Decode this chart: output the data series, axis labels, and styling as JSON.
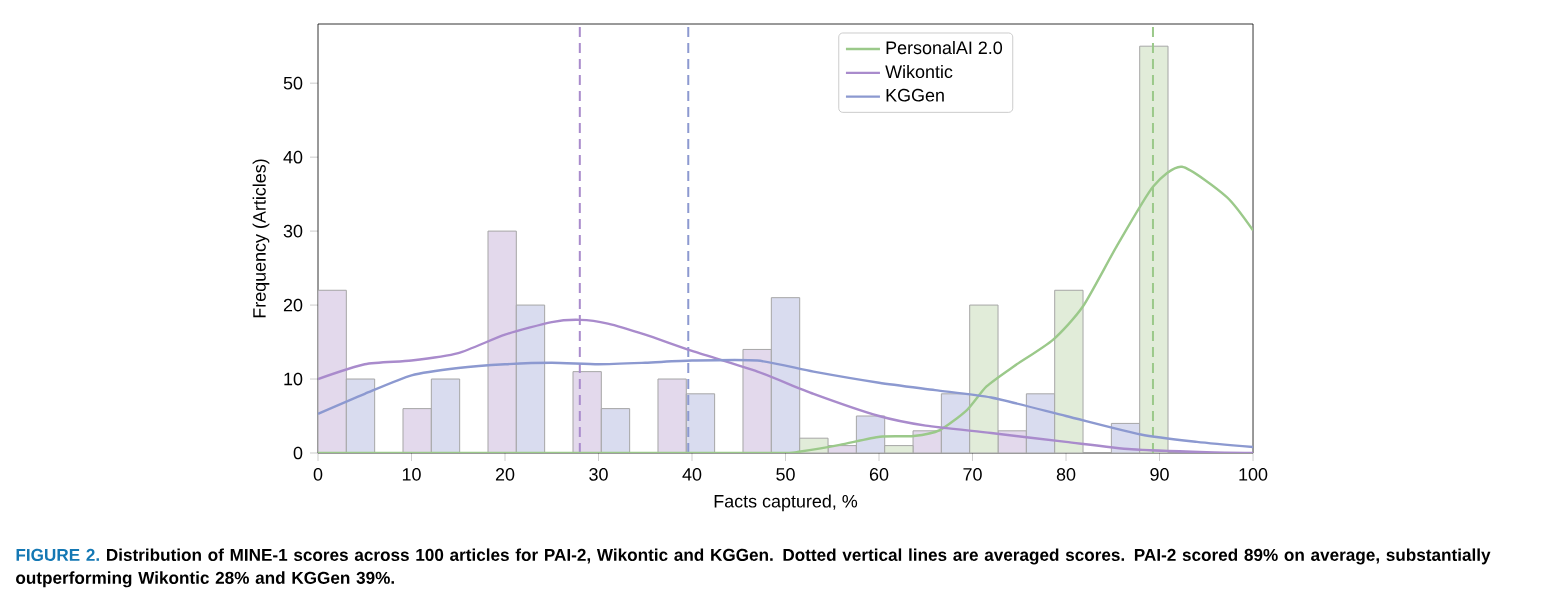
{
  "chart_data": {
    "type": "histogram",
    "xlabel": "Facts captured, %",
    "ylabel": "Frequency (Articles)",
    "xlim": [
      0,
      100
    ],
    "ylim": [
      0,
      58
    ],
    "xticks": [
      0,
      10,
      20,
      30,
      40,
      50,
      60,
      70,
      80,
      90,
      100
    ],
    "yticks": [
      0,
      10,
      20,
      30,
      40,
      50
    ],
    "bins": [
      0,
      9.09,
      18.18,
      27.27,
      36.36,
      45.45,
      54.55,
      63.64,
      72.73,
      81.82,
      90.91,
      100
    ],
    "series": [
      {
        "color": "#e3d9ec",
        "values": [
          22,
          6,
          30,
          11,
          10,
          14,
          1,
          3,
          3,
          0,
          0
        ]
      },
      {
        "color": "#d9dcef",
        "values": [
          10,
          10,
          20,
          6,
          8,
          21,
          5,
          8,
          8,
          4,
          0
        ]
      },
      {
        "color": "#e1ecd9",
        "values": [
          0,
          0,
          0,
          0,
          0,
          2,
          1,
          20,
          22,
          55,
          0
        ]
      },
      {
        "type": "line",
        "name": "PersonalAI 2.0",
        "color": "#9bc98a",
        "x": [
          0,
          20,
          40,
          50,
          51.6,
          55.8,
          60.1,
          63.7,
          66.5,
          69.4,
          71.5,
          74.4,
          78.6,
          81.8,
          85.4,
          89.3,
          92.4,
          97.2,
          100
        ],
        "values": [
          0,
          0,
          0,
          0,
          0.2,
          1.1,
          2.2,
          2.3,
          3.1,
          5.8,
          9,
          11.7,
          15.3,
          19.8,
          27.9,
          36,
          38.7,
          34.6,
          30.1
        ]
      },
      {
        "type": "line",
        "name": "Wikontic",
        "color": "#a98bcc",
        "x": [
          0,
          5,
          10,
          15,
          20,
          25,
          28,
          31,
          35,
          40,
          47,
          53,
          60,
          65,
          72,
          80,
          87,
          95,
          100
        ],
        "values": [
          10,
          12,
          12.5,
          13.5,
          16,
          17.7,
          18,
          17.5,
          16,
          13.8,
          11,
          8,
          5,
          3.7,
          2.7,
          1.5,
          0.5,
          0.1,
          0
        ]
      },
      {
        "type": "line",
        "name": "KGGen",
        "color": "#8c99d0",
        "x": [
          0,
          5,
          10,
          15,
          20,
          25,
          30,
          35,
          40,
          47,
          53,
          60,
          66,
          72,
          80,
          88,
          94,
          100
        ],
        "values": [
          5.3,
          8,
          10.5,
          11.5,
          12,
          12.2,
          12,
          12.2,
          12.5,
          12.5,
          11,
          9.5,
          8.5,
          7.5,
          5,
          2.5,
          1.5,
          0.8
        ]
      }
    ],
    "ref_lines": [
      {
        "axis": "x",
        "value": 28,
        "color": "#a98bcc",
        "line_style": "dashed"
      },
      {
        "axis": "x",
        "value": 39.6,
        "color": "#8c99d0",
        "line_style": "dashed"
      },
      {
        "axis": "x",
        "value": 89.3,
        "color": "#9bc98a",
        "line_style": "dashed"
      }
    ],
    "legend": "top",
    "annotations": [
      "FIGURE 2.",
      "Distribution of MINE-1 scores across 100 articles for PAI-2, Wikontic and KGGen. Dotted vertical lines are averaged scores. PAI-2 scored 89% on average, substantially outperforming Wikontic 28% and KGGen 39%."
    ]
  }
}
